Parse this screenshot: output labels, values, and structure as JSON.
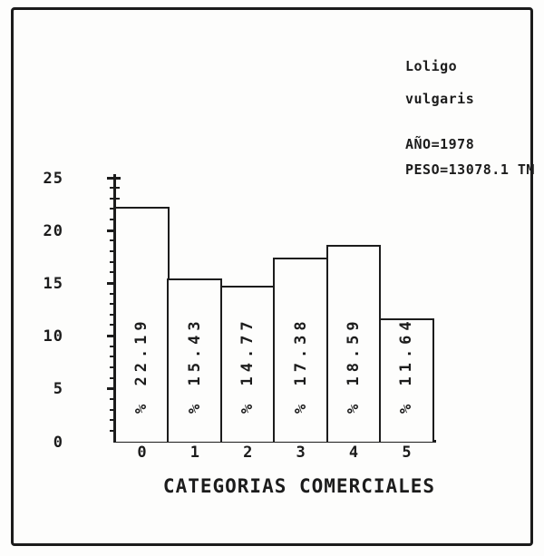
{
  "chart_data": {
    "type": "bar",
    "title": "",
    "categories": [
      "0",
      "1",
      "2",
      "3",
      "4",
      "5"
    ],
    "values": [
      22.19,
      15.43,
      14.77,
      17.38,
      18.59,
      11.64
    ],
    "bar_value_labels": [
      "% 22.19",
      "% 15.43",
      "% 14.77",
      "% 17.38",
      "% 18.59",
      "% 11.64"
    ],
    "xlabel": "CATEGORIAS COMERCIALES",
    "ylabel": "",
    "ylim": [
      0,
      25
    ],
    "yticks": [
      0,
      5,
      10,
      15,
      20,
      25
    ],
    "minor_tick_step": 1,
    "grid": false,
    "legend": null,
    "annotations": {
      "species_line1": "Loligo",
      "species_line2": "vulgaris",
      "year": "AÑO=1978",
      "weight": "PESO=13078.1 TM"
    }
  },
  "colors": {
    "ink": "#1c1c1c",
    "paper": "#fdfdfc"
  }
}
